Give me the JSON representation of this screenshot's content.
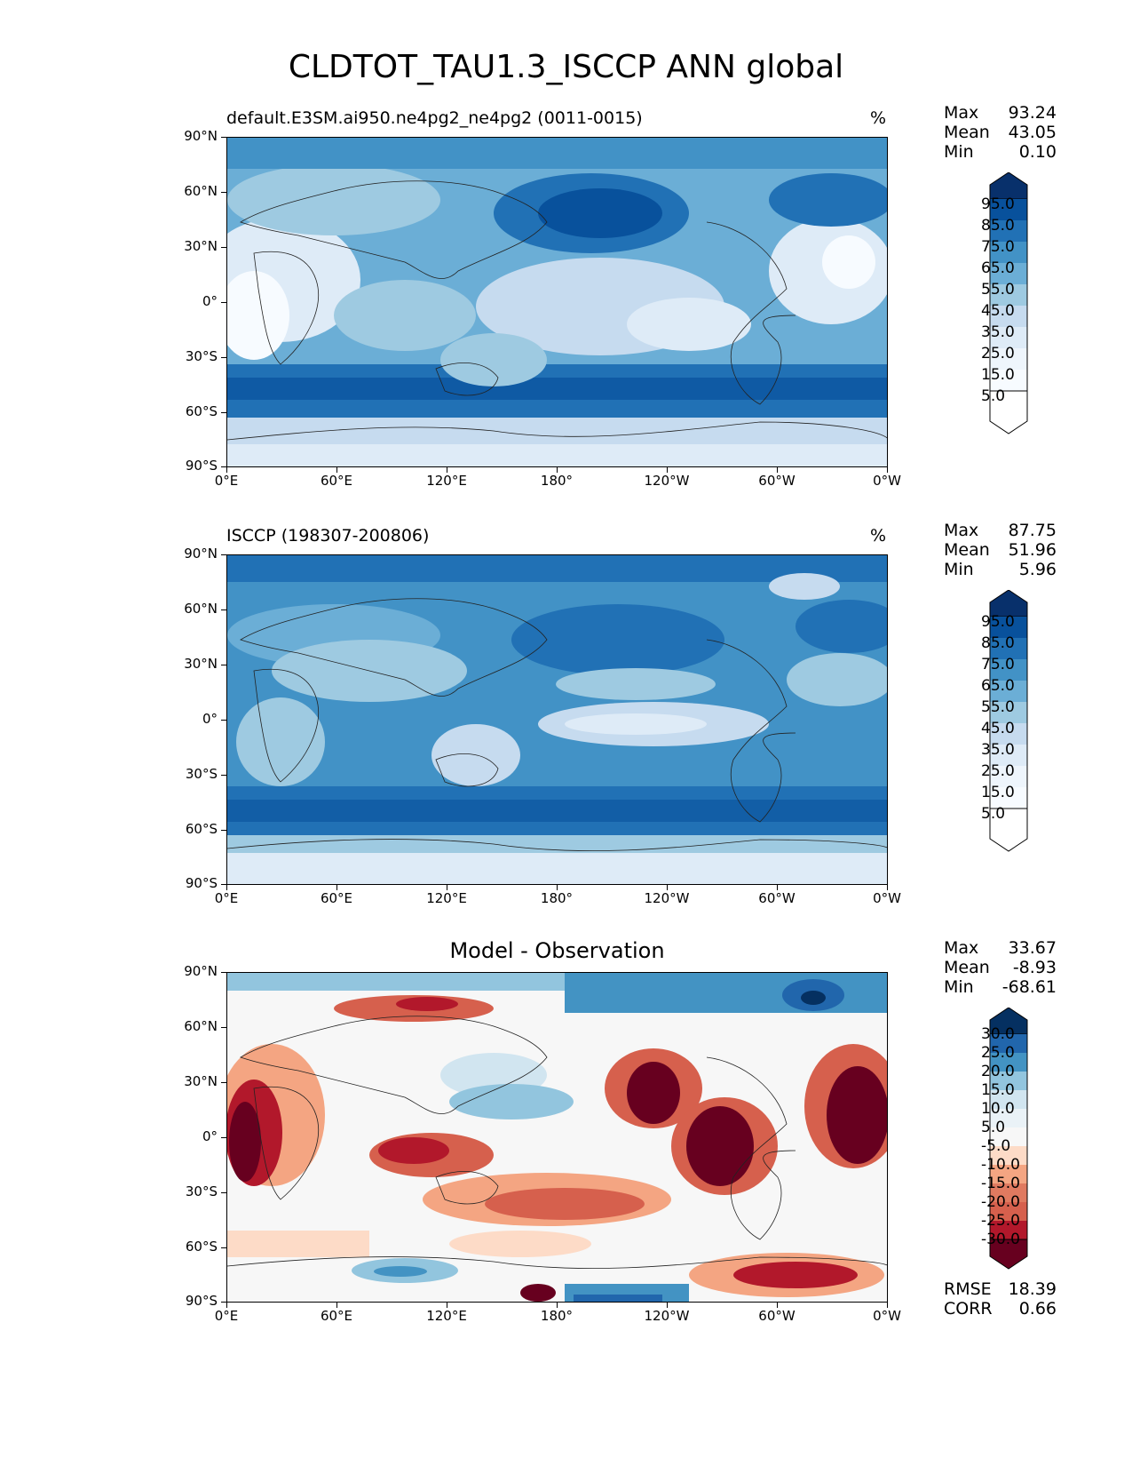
{
  "figure": {
    "title": "CLDTOT_TAU1.3_ISCCP ANN global"
  },
  "axes": {
    "lat_labels": [
      "90°N",
      "60°N",
      "30°N",
      "0°",
      "30°S",
      "60°S",
      "90°S"
    ],
    "lon_labels": [
      "0°E",
      "60°E",
      "120°E",
      "180°",
      "120°W",
      "60°W",
      "0°W"
    ]
  },
  "panels": [
    {
      "title_left": "default.E3SM.ai950.ne4pg2_ne4pg2 (0011-0015)",
      "title_right": "%",
      "stats": {
        "max_label": "Max",
        "max": "93.24",
        "mean_label": "Mean",
        "mean": "43.05",
        "min_label": "Min",
        "min": "0.10"
      },
      "colorbar": {
        "levels": [
          "95.0",
          "85.0",
          "75.0",
          "65.0",
          "55.0",
          "45.0",
          "35.0",
          "25.0",
          "15.0",
          "5.0"
        ]
      }
    },
    {
      "title_left": "ISCCP (198307-200806)",
      "title_right": "%",
      "stats": {
        "max_label": "Max",
        "max": "87.75",
        "mean_label": "Mean",
        "mean": "51.96",
        "min_label": "Min",
        "min": "5.96"
      },
      "colorbar": {
        "levels": [
          "95.0",
          "85.0",
          "75.0",
          "65.0",
          "55.0",
          "45.0",
          "35.0",
          "25.0",
          "15.0",
          "5.0"
        ]
      }
    },
    {
      "title_center": "Model - Observation",
      "stats": {
        "max_label": "Max",
        "max": "33.67",
        "mean_label": "Mean",
        "mean": "-8.93",
        "min_label": "Min",
        "min": "-68.61"
      },
      "colorbar": {
        "levels": [
          "30.0",
          "25.0",
          "20.0",
          "15.0",
          "10.0",
          "5.0",
          "-5.0",
          "-10.0",
          "-15.0",
          "-20.0",
          "-25.0",
          "-30.0"
        ]
      },
      "metrics": {
        "rmse_label": "RMSE",
        "rmse": "18.39",
        "corr_label": "CORR",
        "corr": "0.66"
      }
    }
  ],
  "colors": {
    "blues": [
      "#f7fbff",
      "#deebf7",
      "#c6dbef",
      "#9ecae1",
      "#6baed6",
      "#4292c6",
      "#2171b5",
      "#08519c",
      "#08306b"
    ],
    "diff": [
      "#67001f",
      "#b2182b",
      "#d6604d",
      "#f4a582",
      "#fddbc7",
      "#f7f7f7",
      "#d1e5f0",
      "#92c5de",
      "#4393c3",
      "#2166ac",
      "#053061"
    ]
  }
}
